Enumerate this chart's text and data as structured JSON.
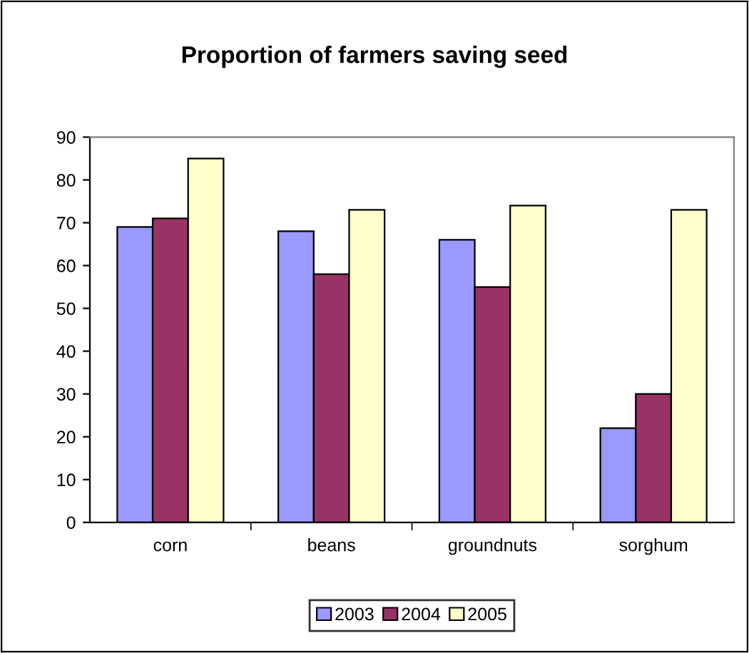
{
  "chart_data": {
    "type": "bar",
    "title": "Proportion of farmers saving seed",
    "categories": [
      "corn",
      "beans",
      "groundnuts",
      "sorghum"
    ],
    "series": [
      {
        "name": "2003",
        "color": "#9999ff",
        "values": [
          69,
          68,
          66,
          22
        ]
      },
      {
        "name": "2004",
        "color": "#993366",
        "values": [
          71,
          58,
          55,
          30
        ]
      },
      {
        "name": "2005",
        "color": "#ffffcc",
        "values": [
          85,
          73,
          74,
          73
        ]
      }
    ],
    "ylim": [
      0,
      90
    ],
    "yticks": [
      0,
      10,
      20,
      30,
      40,
      50,
      60,
      70,
      80,
      90
    ],
    "grid": false,
    "legend": "bottom"
  }
}
